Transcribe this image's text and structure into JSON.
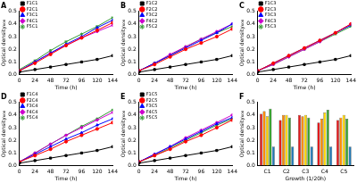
{
  "chart_data": [
    {
      "type": "line",
      "title": "A",
      "x_label": "Time (h)",
      "y_label": "Optical density₆₀₀",
      "x": [
        0,
        24,
        48,
        72,
        96,
        120,
        144
      ],
      "xlim": [
        0,
        144
      ],
      "xticks": [
        0,
        24,
        48,
        72,
        96,
        120,
        144
      ],
      "ylim": [
        0,
        0.5
      ],
      "yticks": [
        {
          "value": 0,
          "label": "0.0"
        },
        0.1,
        0.2,
        0.3,
        0.4,
        0.5
      ],
      "grid": false,
      "legend": "upper left",
      "series": [
        {
          "name": "F1C1",
          "color": "#000000",
          "marker": "square",
          "values": [
            0.02,
            0.04,
            0.06,
            0.08,
            0.1,
            0.12,
            0.15
          ]
        },
        {
          "name": "F2C1",
          "color": "#ff0000",
          "marker": "circle",
          "values": [
            0.03,
            0.09,
            0.16,
            0.23,
            0.29,
            0.35,
            0.41
          ]
        },
        {
          "name": "F3C1",
          "color": "#0000ff",
          "marker": "triangle",
          "values": [
            0.03,
            0.1,
            0.17,
            0.24,
            0.3,
            0.37,
            0.43
          ]
        },
        {
          "name": "F4C1",
          "color": "#cc00cc",
          "marker": "diamond",
          "values": [
            0.03,
            0.1,
            0.17,
            0.23,
            0.29,
            0.34,
            0.39
          ]
        },
        {
          "name": "F5C1",
          "color": "#339933",
          "marker": "star",
          "values": [
            0.04,
            0.11,
            0.19,
            0.26,
            0.32,
            0.38,
            0.45
          ]
        }
      ]
    },
    {
      "type": "line",
      "title": "B",
      "x_label": "Time (h)",
      "y_label": "Optical density₆₀₀",
      "x": [
        0,
        24,
        48,
        72,
        96,
        120,
        144
      ],
      "xlim": [
        0,
        144
      ],
      "xticks": [
        0,
        24,
        48,
        72,
        96,
        120,
        144
      ],
      "ylim": [
        0,
        0.5
      ],
      "yticks": [
        {
          "value": 0,
          "label": "0.0"
        },
        0.1,
        0.2,
        0.3,
        0.4,
        0.5
      ],
      "grid": false,
      "legend": "upper left",
      "series": [
        {
          "name": "F1C2",
          "color": "#000000",
          "marker": "square",
          "values": [
            0.02,
            0.04,
            0.06,
            0.08,
            0.1,
            0.12,
            0.15
          ]
        },
        {
          "name": "F2C2",
          "color": "#ff0000",
          "marker": "circle",
          "values": [
            0.03,
            0.08,
            0.14,
            0.2,
            0.25,
            0.3,
            0.36
          ]
        },
        {
          "name": "F3C2",
          "color": "#0000ff",
          "marker": "triangle",
          "values": [
            0.03,
            0.09,
            0.15,
            0.21,
            0.27,
            0.33,
            0.4
          ]
        },
        {
          "name": "F4C2",
          "color": "#cc00cc",
          "marker": "diamond",
          "values": [
            0.03,
            0.09,
            0.16,
            0.22,
            0.28,
            0.34,
            0.4
          ]
        },
        {
          "name": "F5C2",
          "color": "#339933",
          "marker": "star",
          "values": [
            0.03,
            0.09,
            0.15,
            0.22,
            0.28,
            0.33,
            0.38
          ]
        }
      ]
    },
    {
      "type": "line",
      "title": "C",
      "x_label": "Time (h)",
      "y_label": "Optical density₆₀₀",
      "x": [
        0,
        24,
        48,
        72,
        96,
        120,
        144
      ],
      "xlim": [
        0,
        144
      ],
      "xticks": [
        0,
        24,
        48,
        72,
        96,
        120,
        144
      ],
      "ylim": [
        0,
        0.5
      ],
      "yticks": [
        {
          "value": 0,
          "label": "0.0"
        },
        0.1,
        0.2,
        0.3,
        0.4,
        0.5
      ],
      "grid": false,
      "legend": "upper left",
      "series": [
        {
          "name": "F1C3",
          "color": "#000000",
          "marker": "square",
          "values": [
            0.02,
            0.04,
            0.06,
            0.08,
            0.1,
            0.12,
            0.15
          ]
        },
        {
          "name": "F2C3",
          "color": "#ff0000",
          "marker": "circle",
          "values": [
            0.03,
            0.09,
            0.15,
            0.21,
            0.27,
            0.33,
            0.4
          ]
        },
        {
          "name": "F3C3",
          "color": "#0000ff",
          "marker": "triangle",
          "values": [
            0.03,
            0.09,
            0.15,
            0.21,
            0.27,
            0.33,
            0.39
          ]
        },
        {
          "name": "F4C3",
          "color": "#cc00cc",
          "marker": "diamond",
          "values": [
            0.03,
            0.08,
            0.14,
            0.2,
            0.26,
            0.33,
            0.4
          ]
        },
        {
          "name": "F5C3",
          "color": "#339933",
          "marker": "star",
          "values": [
            0.03,
            0.08,
            0.14,
            0.2,
            0.26,
            0.32,
            0.38
          ]
        }
      ]
    },
    {
      "type": "line",
      "title": "D",
      "x_label": "Time (h)",
      "y_label": "Optical density₆₀₀",
      "x": [
        0,
        24,
        48,
        72,
        96,
        120,
        144
      ],
      "xlim": [
        0,
        144
      ],
      "xticks": [
        0,
        24,
        48,
        72,
        96,
        120,
        144
      ],
      "ylim": [
        0,
        0.5
      ],
      "yticks": [
        {
          "value": 0,
          "label": "0.0"
        },
        0.1,
        0.2,
        0.3,
        0.4,
        0.5
      ],
      "grid": false,
      "legend": "upper left",
      "series": [
        {
          "name": "F1C4",
          "color": "#000000",
          "marker": "square",
          "values": [
            0.02,
            0.04,
            0.06,
            0.08,
            0.1,
            0.12,
            0.15
          ]
        },
        {
          "name": "F2C4",
          "color": "#ff0000",
          "marker": "circle",
          "values": [
            0.03,
            0.08,
            0.13,
            0.19,
            0.24,
            0.29,
            0.34
          ]
        },
        {
          "name": "F3C4",
          "color": "#0000ff",
          "marker": "triangle",
          "values": [
            0.03,
            0.09,
            0.15,
            0.21,
            0.26,
            0.32,
            0.37
          ]
        },
        {
          "name": "F4C4",
          "color": "#cc00cc",
          "marker": "diamond",
          "values": [
            0.03,
            0.1,
            0.17,
            0.24,
            0.3,
            0.36,
            0.42
          ]
        },
        {
          "name": "F5C4",
          "color": "#339933",
          "marker": "star",
          "values": [
            0.03,
            0.1,
            0.17,
            0.24,
            0.31,
            0.37,
            0.44
          ]
        }
      ]
    },
    {
      "type": "line",
      "title": "E",
      "x_label": "Time (h)",
      "y_label": "Optical density₆₀₀",
      "x": [
        0,
        24,
        48,
        72,
        96,
        120,
        144
      ],
      "xlim": [
        0,
        144
      ],
      "xticks": [
        0,
        24,
        48,
        72,
        96,
        120,
        144
      ],
      "ylim": [
        0,
        0.5
      ],
      "yticks": [
        {
          "value": 0,
          "label": "0.0"
        },
        0.1,
        0.2,
        0.3,
        0.4,
        0.5
      ],
      "grid": false,
      "legend": "upper left",
      "series": [
        {
          "name": "F1C5",
          "color": "#000000",
          "marker": "square",
          "values": [
            0.02,
            0.04,
            0.06,
            0.08,
            0.1,
            0.12,
            0.15
          ]
        },
        {
          "name": "F2C5",
          "color": "#ff0000",
          "marker": "circle",
          "values": [
            0.03,
            0.08,
            0.13,
            0.19,
            0.24,
            0.3,
            0.36
          ]
        },
        {
          "name": "F3C5",
          "color": "#0000ff",
          "marker": "triangle",
          "values": [
            0.03,
            0.09,
            0.15,
            0.21,
            0.27,
            0.33,
            0.38
          ]
        },
        {
          "name": "F4C5",
          "color": "#cc00cc",
          "marker": "diamond",
          "values": [
            0.03,
            0.09,
            0.15,
            0.22,
            0.28,
            0.34,
            0.4
          ]
        },
        {
          "name": "F5C5",
          "color": "#339933",
          "marker": "star",
          "values": [
            0.03,
            0.08,
            0.14,
            0.2,
            0.26,
            0.32,
            0.37
          ]
        }
      ]
    },
    {
      "type": "bar",
      "title": "F",
      "x_label": "Growth (1/20h)",
      "y_label": "Optical density₆₀₀",
      "categories": [
        "C1",
        "C2",
        "C3",
        "C4",
        "C5"
      ],
      "ylim": [
        0,
        0.5
      ],
      "yticks": [
        {
          "value": 0,
          "label": "0.0"
        },
        0.1,
        0.2,
        0.3,
        0.4,
        0.5
      ],
      "grid": false,
      "series": [
        {
          "color": "#e31a1c",
          "values": [
            0.41,
            0.36,
            0.4,
            0.34,
            0.36
          ]
        },
        {
          "color": "#ff8c00",
          "values": [
            0.43,
            0.4,
            0.39,
            0.37,
            0.38
          ]
        },
        {
          "color": "#ffd700",
          "values": [
            0.39,
            0.4,
            0.4,
            0.42,
            0.4
          ]
        },
        {
          "color": "#33a02c",
          "values": [
            0.45,
            0.38,
            0.38,
            0.44,
            0.37
          ]
        },
        {
          "color": "#1f78b4",
          "values": [
            0.15,
            0.15,
            0.15,
            0.15,
            0.15
          ]
        }
      ]
    }
  ]
}
